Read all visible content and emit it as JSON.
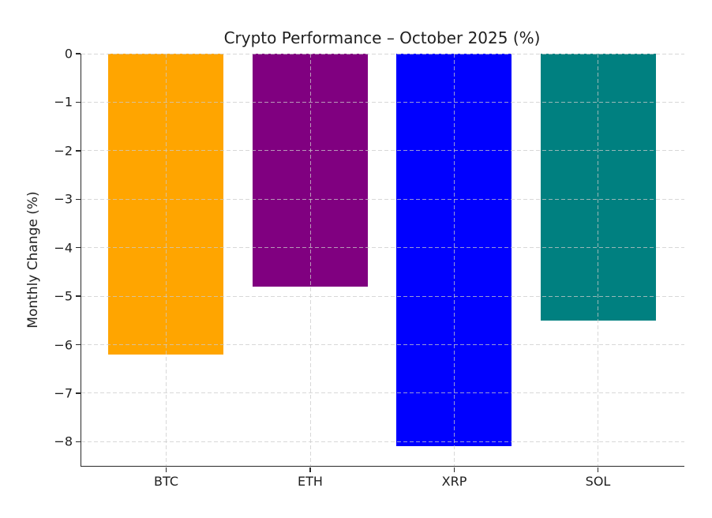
{
  "chart_data": {
    "type": "bar",
    "title": "Crypto Performance – October 2025 (%)",
    "xlabel": "",
    "ylabel": "Monthly Change (%)",
    "categories": [
      "BTC",
      "ETH",
      "XRP",
      "SOL"
    ],
    "values": [
      -6.2,
      -4.8,
      -8.1,
      -5.5
    ],
    "bar_colors": [
      "#FFA500",
      "#800080",
      "#0000FF",
      "#008080"
    ],
    "yticks": [
      0,
      -1,
      -2,
      -3,
      -4,
      -5,
      -6,
      -7,
      -8
    ],
    "ylim": [
      -8.5,
      0
    ],
    "grid": "dashed, both axes, light gray",
    "legend": "none",
    "background_color": "#ffffff",
    "spine_color": "#2a2a2a"
  }
}
